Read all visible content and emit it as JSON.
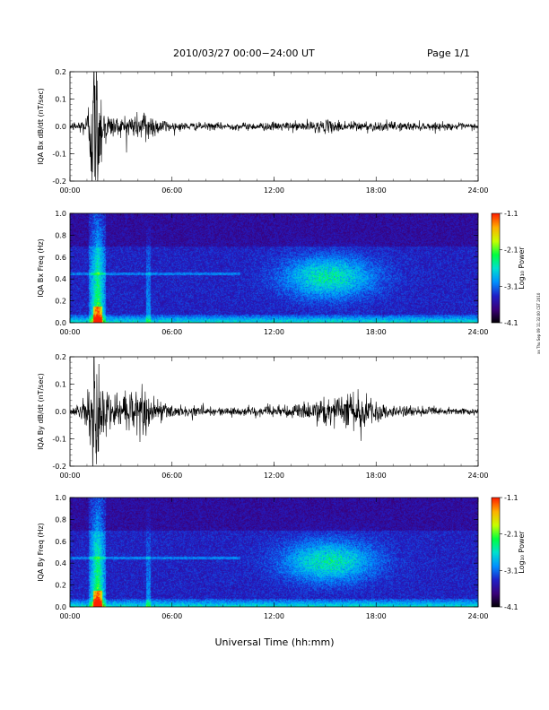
{
  "header": {
    "title": "2010/03/27  00:00−24:00 UT",
    "page_label": "Page 1/1"
  },
  "footer": {
    "xlabel": "Universal Time (hh:mm)",
    "timestamp": "xx Thu Sep 09 11:32:00 CST 2010"
  },
  "colors": {
    "trace": "#000000",
    "colormap": [
      "#000000",
      "#3a007a",
      "#2020c8",
      "#0090ff",
      "#00e0d0",
      "#00ff40",
      "#c8ff00",
      "#ffb000",
      "#ff2000"
    ]
  },
  "chart_data": [
    {
      "type": "line",
      "ylabel": "IQA Bx dB/dt (nT/sec)",
      "xlim": [
        0,
        24
      ],
      "ylim": [
        -0.2,
        0.2
      ],
      "x_ticks": [
        "00:00",
        "06:00",
        "12:00",
        "18:00",
        "24:00"
      ],
      "y_ticks": [
        "-0.2",
        "-0.1",
        "0.0",
        "0.1",
        "0.2"
      ],
      "envelope": {
        "t_hours": [
          0,
          0.5,
          1.0,
          1.3,
          1.6,
          1.9,
          2.3,
          3.0,
          3.5,
          4.0,
          4.5,
          5.0,
          5.5,
          6.0,
          8,
          10,
          12,
          13,
          14,
          15,
          16,
          17,
          18,
          20,
          22,
          24
        ],
        "amplitude": [
          0.012,
          0.02,
          0.04,
          0.25,
          0.25,
          0.1,
          0.04,
          0.03,
          0.05,
          0.04,
          0.07,
          0.03,
          0.025,
          0.015,
          0.012,
          0.012,
          0.014,
          0.015,
          0.018,
          0.02,
          0.02,
          0.018,
          0.016,
          0.014,
          0.012,
          0.01
        ]
      }
    },
    {
      "type": "heatmap",
      "ylabel": "IQA Bx Freq (Hz)",
      "xlim": [
        0,
        24
      ],
      "ylim": [
        0,
        1.0
      ],
      "x_ticks": [
        "00:00",
        "06:00",
        "12:00",
        "18:00",
        "24:00"
      ],
      "y_ticks": [
        "0.0",
        "0.2",
        "0.4",
        "0.6",
        "0.8",
        "1.0"
      ],
      "colorbar": {
        "label": "Log₁₀ Power",
        "range": [
          -4.1,
          -1.1
        ],
        "ticks": [
          "-1.1",
          "-2.1",
          "-3.1",
          "-4.1"
        ]
      }
    },
    {
      "type": "line",
      "ylabel": "IQA By dB/dt (nT/sec)",
      "xlim": [
        0,
        24
      ],
      "ylim": [
        -0.2,
        0.2
      ],
      "x_ticks": [
        "00:00",
        "06:00",
        "12:00",
        "18:00",
        "24:00"
      ],
      "y_ticks": [
        "-0.2",
        "-0.1",
        "0.0",
        "0.1",
        "0.2"
      ],
      "envelope": {
        "t_hours": [
          0,
          0.5,
          1.0,
          1.3,
          1.6,
          1.9,
          2.3,
          3.0,
          3.5,
          4.0,
          4.5,
          5.0,
          5.5,
          6.0,
          8,
          10,
          12,
          13,
          14,
          15,
          16,
          16.5,
          17,
          18,
          20,
          22,
          24
        ],
        "amplitude": [
          0.015,
          0.025,
          0.05,
          0.25,
          0.25,
          0.12,
          0.06,
          0.05,
          0.07,
          0.06,
          0.09,
          0.04,
          0.03,
          0.02,
          0.015,
          0.015,
          0.02,
          0.025,
          0.03,
          0.04,
          0.05,
          0.08,
          0.06,
          0.03,
          0.018,
          0.014,
          0.012
        ]
      }
    },
    {
      "type": "heatmap",
      "ylabel": "IQA By Freq (Hz)",
      "xlim": [
        0,
        24
      ],
      "ylim": [
        0,
        1.0
      ],
      "x_ticks": [
        "00:00",
        "06:00",
        "12:00",
        "18:00",
        "24:00"
      ],
      "y_ticks": [
        "0.0",
        "0.2",
        "0.4",
        "0.6",
        "0.8",
        "1.0"
      ],
      "colorbar": {
        "label": "Log₁₀ Power",
        "range": [
          -4.1,
          -1.1
        ],
        "ticks": [
          "-1.1",
          "-2.1",
          "-3.1",
          "-4.1"
        ]
      }
    }
  ]
}
